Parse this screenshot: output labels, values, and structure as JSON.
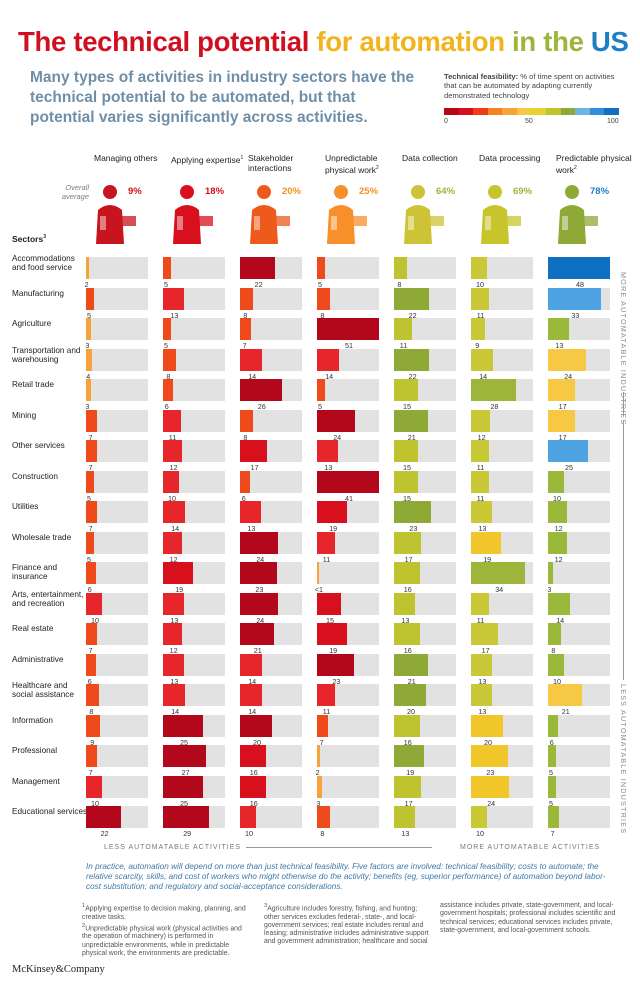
{
  "title": {
    "part1": "The technical potential",
    "part2": "for automation",
    "part3": "in the",
    "part4": "US"
  },
  "subtitle": "Many types of activities in industry sectors have the technical potential to be automated, but that potential varies significantly across activities.",
  "legend": {
    "label_bold": "Technical feasibility:",
    "label_rest": "% of time spent on activities that can be automated by adapting currently demonstrated technology",
    "ticks": [
      "0",
      "50",
      "100"
    ]
  },
  "colors": {
    "title_red": "#d0101f",
    "title_yellow": "#f2b41c",
    "title_green": "#9cb53a",
    "title_blue": "#1c7fc6",
    "scale": [
      "#b3071b",
      "#d8101e",
      "#ee3b1c",
      "#f5821f",
      "#f7a23c",
      "#f6c843",
      "#e7d12c",
      "#bdc430",
      "#8ea935",
      "#6fb5e2",
      "#2f8fdc",
      "#0e6fc3"
    ]
  },
  "overall_label": "Overall average",
  "sectors_label": "Sectors",
  "sectors_sup": "3",
  "side_labels": {
    "top": "MORE AUTOMATABLE INDUSTRIES",
    "bottom": "LESS AUTOMATABLE INDUSTRIES",
    "left": "LESS AUTOMATABLE ACTIVITIES",
    "right": "MORE AUTOMATABLE ACTIVITIES"
  },
  "chart_data": {
    "type": "heatmap",
    "title": "The technical potential for automation in the US",
    "value_unit": "% of time spent on activities that can be automated",
    "range": [
      0,
      100
    ],
    "activities": [
      {
        "name": "Managing others",
        "sup": "",
        "average": "9%"
      },
      {
        "name": "Applying expertise",
        "sup": "1",
        "average": "18%"
      },
      {
        "name": "Stakeholder interactions",
        "sup": "",
        "average": "20%"
      },
      {
        "name": "Unpredictable physical work",
        "sup": "2",
        "average": "25%"
      },
      {
        "name": "Data collection",
        "sup": "",
        "average": "64%"
      },
      {
        "name": "Data processing",
        "sup": "",
        "average": "69%"
      },
      {
        "name": "Predictable physical work",
        "sup": "2",
        "average": "78%"
      }
    ],
    "rows": [
      {
        "sector": "Accommodations and food service",
        "values": [
          "2",
          "5",
          "22",
          "5",
          "8",
          "10",
          "48"
        ]
      },
      {
        "sector": "Manufacturing",
        "values": [
          "5",
          "13",
          "8",
          "8",
          "22",
          "11",
          "33"
        ]
      },
      {
        "sector": "Agriculture",
        "values": [
          "3",
          "5",
          "7",
          "51",
          "11",
          "9",
          "13"
        ]
      },
      {
        "sector": "Transportation and warehousing",
        "values": [
          "4",
          "8",
          "14",
          "14",
          "22",
          "14",
          "24"
        ]
      },
      {
        "sector": "Retail trade",
        "values": [
          "3",
          "6",
          "26",
          "5",
          "15",
          "28",
          "17"
        ]
      },
      {
        "sector": "Mining",
        "values": [
          "7",
          "11",
          "8",
          "24",
          "21",
          "12",
          "17"
        ]
      },
      {
        "sector": "Other services",
        "values": [
          "7",
          "12",
          "17",
          "13",
          "15",
          "11",
          "25"
        ]
      },
      {
        "sector": "Construction",
        "values": [
          "5",
          "10",
          "6",
          "41",
          "15",
          "11",
          "10"
        ]
      },
      {
        "sector": "Utilities",
        "values": [
          "7",
          "14",
          "13",
          "19",
          "23",
          "13",
          "12"
        ]
      },
      {
        "sector": "Wholesale trade",
        "values": [
          "5",
          "12",
          "24",
          "11",
          "17",
          "19",
          "12"
        ]
      },
      {
        "sector": "Finance and insurance",
        "values": [
          "6",
          "19",
          "23",
          "<1",
          "16",
          "34",
          "3"
        ]
      },
      {
        "sector": "Arts, entertainment, and recreation",
        "values": [
          "10",
          "13",
          "24",
          "15",
          "13",
          "11",
          "14"
        ]
      },
      {
        "sector": "Real estate",
        "values": [
          "7",
          "12",
          "21",
          "19",
          "16",
          "17",
          "8"
        ]
      },
      {
        "sector": "Administrative",
        "values": [
          "6",
          "13",
          "14",
          "23",
          "21",
          "13",
          "10"
        ]
      },
      {
        "sector": "Healthcare and social assistance",
        "values": [
          "8",
          "14",
          "14",
          "11",
          "20",
          "13",
          "21"
        ]
      },
      {
        "sector": "Information",
        "values": [
          "9",
          "25",
          "20",
          "7",
          "16",
          "20",
          "6"
        ]
      },
      {
        "sector": "Professional",
        "values": [
          "7",
          "27",
          "16",
          "2",
          "19",
          "23",
          "5"
        ]
      },
      {
        "sector": "Management",
        "values": [
          "10",
          "25",
          "16",
          "3",
          "17",
          "24",
          "5"
        ]
      },
      {
        "sector": "Educational services",
        "values": [
          "22",
          "29",
          "10",
          "8",
          "13",
          "10",
          "7"
        ]
      }
    ]
  },
  "practice_note": "In practice, automation will depend on more than just technical feasibility. Five factors are involved: technical feasibility; costs to automate; the relative scarcity, skills, and cost of workers who might otherwise do the activity; benefits (eg, superior performance) of automation beyond labor-cost substitution; and regulatory and social-acceptance considerations.",
  "footnotes": {
    "fn1": "Applying expertise to decision making, planning, and creative tasks.",
    "fn2": "Unpredictable physical work (physical activities and the operation of machinery) is performed in unpredictable environments, while in predictable physical work, the environments are predictable.",
    "fn3": "Agriculture includes forestry, fishing, and hunting; other services excludes federal-, state-, and local-government services; real estate includes rental and leasing; administrative includes administrative support and government administration; healthcare and social",
    "fn3_cont": "assistance includes private, state-government, and local-government hospitals; professional includes scientific and technical services; educational services includes private, state-government, and local-government schools."
  },
  "logo": "McKinsey&Company"
}
